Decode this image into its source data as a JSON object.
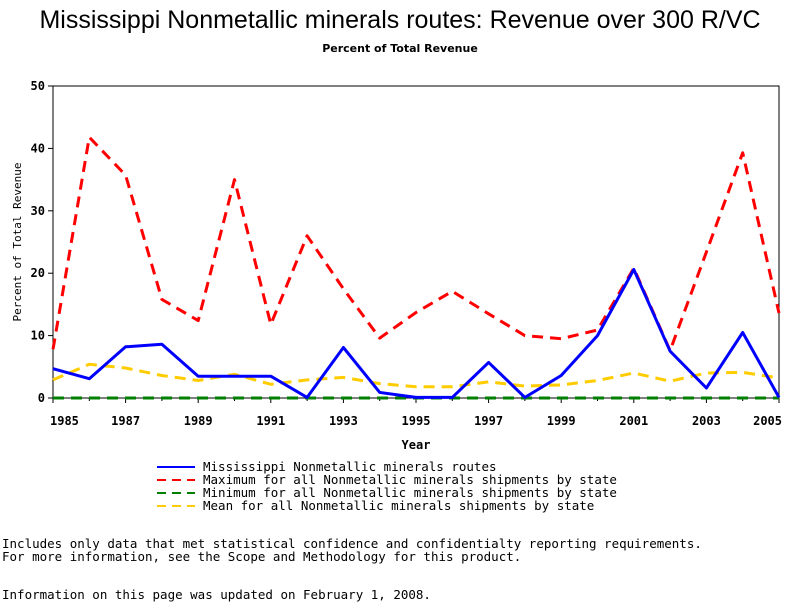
{
  "chart_data": {
    "type": "line",
    "title": "Mississippi Nonmetallic minerals routes: Revenue over 300 R/VC",
    "subtitle": "Percent of Total Revenue",
    "xlabel": "Year",
    "ylabel": "Percent of Total Revenue",
    "ylim": [
      0,
      50
    ],
    "xlim": [
      1985,
      2005
    ],
    "yticks": [
      0,
      10,
      20,
      30,
      40,
      50
    ],
    "xticks": [
      1985,
      1987,
      1989,
      1991,
      1993,
      1995,
      1997,
      1999,
      2001,
      2003,
      2005
    ],
    "x": [
      1985,
      1986,
      1987,
      1988,
      1989,
      1990,
      1991,
      1992,
      1993,
      1994,
      1995,
      1996,
      1997,
      1998,
      1999,
      2000,
      2001,
      2002,
      2003,
      2004,
      2005
    ],
    "series": [
      {
        "name": "Mississippi Nonmetallic minerals routes",
        "color": "#0000ff",
        "dash": "solid",
        "values": [
          4.7,
          3.1,
          8.2,
          8.6,
          3.5,
          3.5,
          3.5,
          0.1,
          8.1,
          0.9,
          0.1,
          0.1,
          5.7,
          0.1,
          3.6,
          10.0,
          20.6,
          7.5,
          1.6,
          10.5,
          0.1
        ]
      },
      {
        "name": "Maximum for all Nonmetallic minerals shipments by state",
        "color": "#ff0000",
        "dash": "dashed",
        "values": [
          7.8,
          41.8,
          35.7,
          15.8,
          12.4,
          35.0,
          11.8,
          26.0,
          17.5,
          9.6,
          13.7,
          17.1,
          13.5,
          10.0,
          9.5,
          10.9,
          20.8,
          7.6,
          23.4,
          39.3,
          13.6
        ]
      },
      {
        "name": "Minimum for all Nonmetallic minerals shipments by state",
        "color": "#008000",
        "dash": "dashed",
        "values": [
          0,
          0,
          0,
          0,
          0,
          0,
          0,
          0,
          0,
          0,
          0,
          0,
          0,
          0,
          0,
          0,
          0,
          0,
          0,
          0,
          0
        ]
      },
      {
        "name": "Mean for all Nonmetallic minerals shipments by state",
        "color": "#ffcc00",
        "dash": "dashed",
        "values": [
          2.9,
          5.4,
          4.8,
          3.6,
          2.8,
          3.8,
          2.2,
          2.9,
          3.3,
          2.3,
          1.8,
          1.8,
          2.6,
          1.9,
          2.1,
          2.8,
          4.0,
          2.7,
          4.0,
          4.1,
          3.2
        ]
      }
    ],
    "legend_position": "bottom"
  },
  "notes": {
    "line1": "Includes only data that met statistical confidence and confidentialty reporting requirements.",
    "line2": "For more information, see the Scope and Methodology for this product.",
    "line3": "Information on this page was updated on February 1, 2008."
  }
}
